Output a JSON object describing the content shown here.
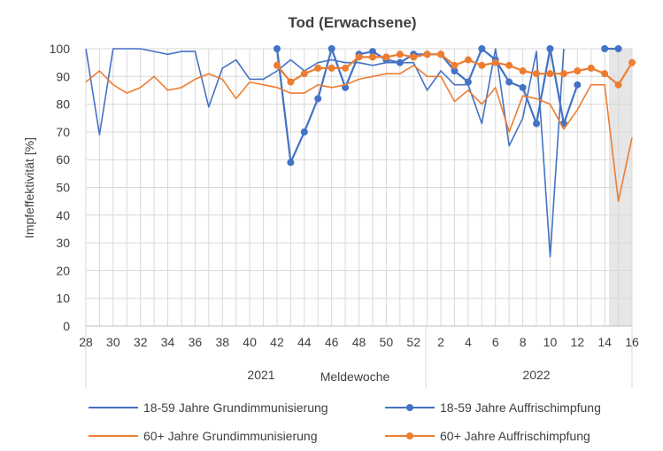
{
  "chart_data": {
    "type": "line",
    "title": "Tod (Erwachsene)",
    "xlabel": "Meldewoche",
    "ylabel": "Impfeffektivität [%]",
    "ylim": [
      0,
      100
    ],
    "yticks": [
      "0",
      "10",
      "20",
      "30",
      "40",
      "50",
      "60",
      "70",
      "80",
      "90",
      "100"
    ],
    "xticks": [
      "28",
      "30",
      "32",
      "34",
      "36",
      "38",
      "40",
      "42",
      "44",
      "46",
      "48",
      "50",
      "52",
      "2",
      "4",
      "6",
      "8",
      "10",
      "12",
      "14",
      "16"
    ],
    "year_labels": [
      "2021",
      "2022"
    ],
    "grid": true,
    "legend_position": "bottom",
    "x": [
      "28",
      "29",
      "30",
      "31",
      "32",
      "33",
      "34",
      "35",
      "36",
      "37",
      "38",
      "39",
      "40",
      "41",
      "42",
      "43",
      "44",
      "45",
      "46",
      "47",
      "48",
      "49",
      "50",
      "51",
      "52",
      "1",
      "2",
      "3",
      "4",
      "5",
      "6",
      "7",
      "8",
      "9",
      "10",
      "11",
      "12",
      "13",
      "14",
      "15",
      "16"
    ],
    "series": [
      {
        "name": "18-59 Jahre Grundimmunisierung",
        "color": "#4472c4",
        "markers": false,
        "values": [
          100,
          69,
          100,
          100,
          100,
          99,
          98,
          99,
          99,
          79,
          93,
          96,
          89,
          89,
          92,
          96,
          92,
          95,
          96,
          95,
          95,
          94,
          95,
          95,
          95,
          85,
          92,
          87,
          87,
          73,
          100,
          65,
          75,
          99,
          25,
          100,
          null,
          null,
          null,
          null,
          null
        ]
      },
      {
        "name": "18-59 Jahre Auffrischimpfung",
        "color": "#4472c4",
        "markers": true,
        "values": [
          null,
          null,
          null,
          null,
          null,
          null,
          null,
          null,
          null,
          null,
          null,
          null,
          null,
          null,
          100,
          59,
          70,
          82,
          100,
          86,
          98,
          99,
          96,
          95,
          98,
          98,
          98,
          92,
          88,
          100,
          96,
          88,
          86,
          73,
          100,
          73,
          87,
          null,
          100,
          100,
          null
        ]
      },
      {
        "name": "60+ Jahre Grundimmunisierung",
        "color": "#ed7d31",
        "markers": false,
        "values": [
          88,
          92,
          87,
          84,
          86,
          90,
          85,
          86,
          89,
          91,
          89,
          82,
          88,
          87,
          86,
          84,
          84,
          87,
          86,
          87,
          89,
          90,
          91,
          91,
          94,
          90,
          90,
          81,
          85,
          80,
          86,
          70,
          83,
          82,
          80,
          71,
          78,
          87,
          87,
          45,
          68
        ]
      },
      {
        "name": "60+ Jahre Auffrischimpfung",
        "color": "#ed7d31",
        "markers": true,
        "values": [
          null,
          null,
          null,
          null,
          null,
          null,
          null,
          null,
          null,
          null,
          null,
          null,
          null,
          null,
          94,
          88,
          91,
          93,
          93,
          93,
          97,
          97,
          97,
          98,
          97,
          98,
          98,
          94,
          96,
          94,
          95,
          94,
          92,
          91,
          91,
          91,
          92,
          93,
          91,
          87,
          95
        ]
      }
    ]
  }
}
